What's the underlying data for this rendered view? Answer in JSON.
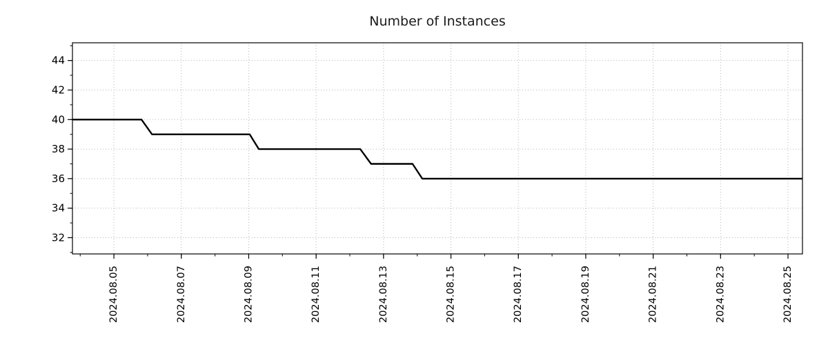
{
  "chart_data": {
    "type": "line",
    "title": "Number of Instances",
    "style": "step-like time series of daily sampled values, black line on white, dotted gray grid, boxed axes",
    "colors": {
      "line": "#000000",
      "grid": "#b3b3b3",
      "axis": "#000000",
      "text": "#000000",
      "title_text": "#1a1a1a",
      "background": "#ffffff"
    },
    "x_axis": {
      "unit": "date",
      "tick_labels": [
        "2024.08.05",
        "2024.08.07",
        "2024.08.09",
        "2024.08.11",
        "2024.08.13",
        "2024.08.15",
        "2024.08.17",
        "2024.08.19",
        "2024.08.21",
        "2024.08.23",
        "2024.08.25"
      ],
      "tick_days": [
        5,
        7,
        9,
        11,
        13,
        15,
        17,
        19,
        21,
        23,
        25
      ],
      "minor_tick_step_days": 1,
      "range_days": [
        3.77,
        25.43
      ],
      "label_rotation_deg": 90
    },
    "y_axis": {
      "tick_values": [
        32,
        34,
        36,
        38,
        40,
        42,
        44
      ],
      "minor_tick_step": 1,
      "range": [
        30.9,
        45.2
      ]
    },
    "legend": {
      "show": false
    },
    "series": [
      {
        "name": "instances",
        "points": [
          {
            "day": 3.77,
            "value": 40
          },
          {
            "day": 5.82,
            "value": 40
          },
          {
            "day": 6.13,
            "value": 39
          },
          {
            "day": 9.03,
            "value": 39
          },
          {
            "day": 9.3,
            "value": 38
          },
          {
            "day": 12.31,
            "value": 38
          },
          {
            "day": 12.63,
            "value": 37
          },
          {
            "day": 13.86,
            "value": 37
          },
          {
            "day": 14.15,
            "value": 36
          },
          {
            "day": 25.43,
            "value": 36
          }
        ]
      }
    ]
  }
}
